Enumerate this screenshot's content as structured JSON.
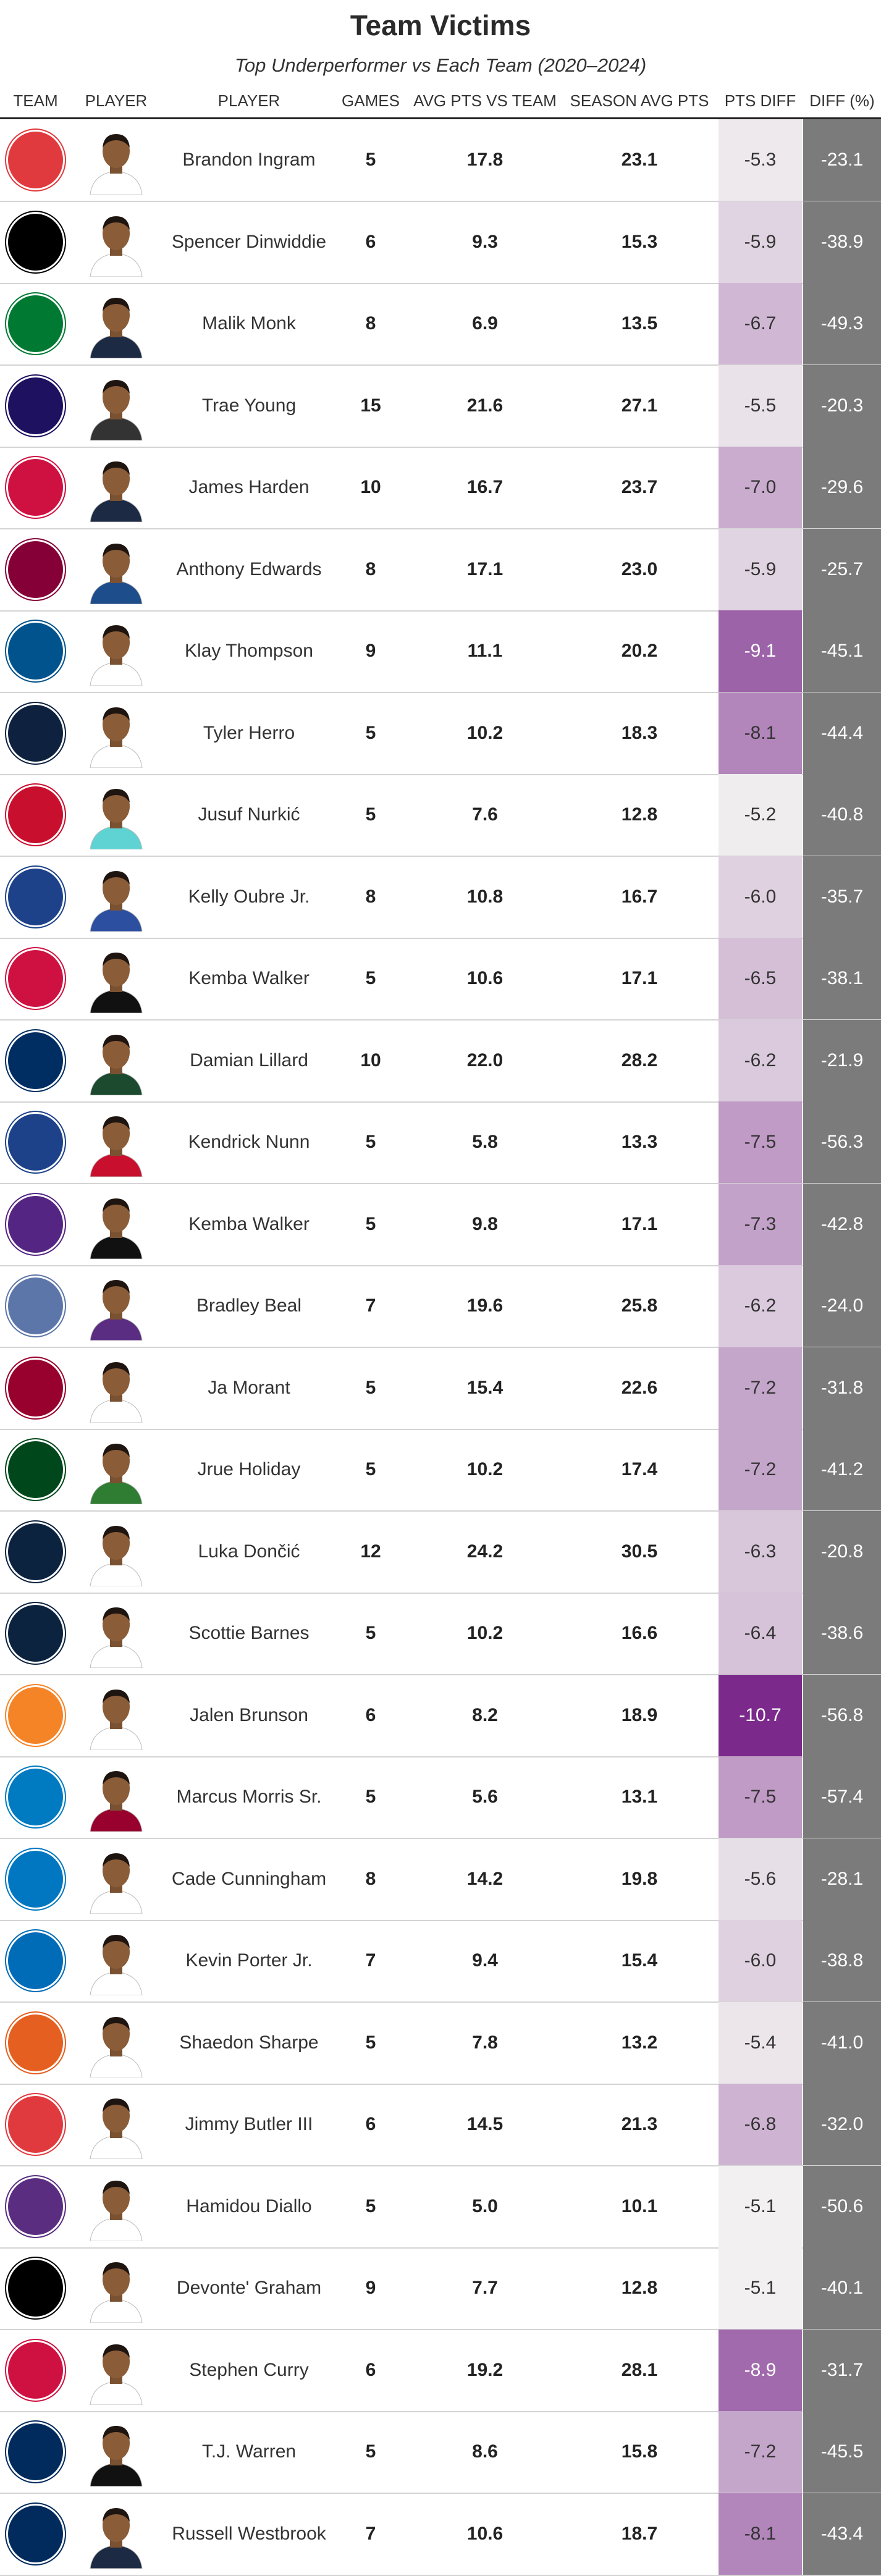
{
  "title": "Team Victims",
  "subtitle": "Top Underperformer vs Each Team (2020–2024)",
  "headers": {
    "team": "TEAM",
    "player_photo": "PLAYER",
    "player": "PLAYER",
    "games": "GAMES",
    "avg_vs_team": "AVG PTS VS TEAM",
    "season_avg": "SEASON AVG PTS",
    "pts_diff": "PTS DIFF",
    "diff_pct": "DIFF (%)"
  },
  "chart_data": {
    "type": "table",
    "columns": [
      "TEAM",
      "PLAYER",
      "GAMES",
      "AVG PTS VS TEAM",
      "SEASON AVG PTS",
      "PTS DIFF",
      "DIFF (%)"
    ],
    "rows": [
      {
        "team_icon": "hawks-logo-icon",
        "team_color": "#e03a3e",
        "player": "Brandon Ingram",
        "jersey": "#ffffff",
        "games": "5",
        "avg": "17.8",
        "season": "23.1",
        "pts_diff": "-5.3",
        "pct": "-23.1",
        "diff_value": -5.3
      },
      {
        "team_icon": "nets-logo-icon",
        "team_color": "#000000",
        "player": "Spencer Dinwiddie",
        "jersey": "#ffffff",
        "games": "6",
        "avg": "9.3",
        "season": "15.3",
        "pts_diff": "-5.9",
        "pct": "-38.9",
        "diff_value": -5.9
      },
      {
        "team_icon": "celtics-logo-icon",
        "team_color": "#007a33",
        "player": "Malik Monk",
        "jersey": "#1d2a44",
        "games": "8",
        "avg": "6.9",
        "season": "13.5",
        "pts_diff": "-6.7",
        "pct": "-49.3",
        "diff_value": -6.7
      },
      {
        "team_icon": "hornets-logo-icon",
        "team_color": "#1d1160",
        "player": "Trae Young",
        "jersey": "#333333",
        "games": "15",
        "avg": "21.6",
        "season": "27.1",
        "pts_diff": "-5.5",
        "pct": "-20.3",
        "diff_value": -5.5
      },
      {
        "team_icon": "bulls-logo-icon",
        "team_color": "#ce1141",
        "player": "James Harden",
        "jersey": "#1d2a44",
        "games": "10",
        "avg": "16.7",
        "season": "23.7",
        "pts_diff": "-7.0",
        "pct": "-29.6",
        "diff_value": -7.0
      },
      {
        "team_icon": "cavaliers-logo-icon",
        "team_color": "#860038",
        "player": "Anthony Edwards",
        "jersey": "#1e4d8c",
        "games": "8",
        "avg": "17.1",
        "season": "23.0",
        "pts_diff": "-5.9",
        "pct": "-25.7",
        "diff_value": -5.9
      },
      {
        "team_icon": "mavericks-logo-icon",
        "team_color": "#00538c",
        "player": "Klay Thompson",
        "jersey": "#ffffff",
        "games": "9",
        "avg": "11.1",
        "season": "20.2",
        "pts_diff": "-9.1",
        "pct": "-45.1",
        "diff_value": -9.1
      },
      {
        "team_icon": "nuggets-logo-icon",
        "team_color": "#0e2240",
        "player": "Tyler Herro",
        "jersey": "#ffffff",
        "games": "5",
        "avg": "10.2",
        "season": "18.3",
        "pts_diff": "-8.1",
        "pct": "-44.4",
        "diff_value": -8.1
      },
      {
        "team_icon": "pistons-logo-icon",
        "team_color": "#c8102e",
        "player": "Jusuf Nurkić",
        "jersey": "#5fd3d3",
        "games": "5",
        "avg": "7.6",
        "season": "12.8",
        "pts_diff": "-5.2",
        "pct": "-40.8",
        "diff_value": -5.2
      },
      {
        "team_icon": "warriors-logo-icon",
        "team_color": "#1d428a",
        "player": "Kelly Oubre Jr.",
        "jersey": "#2d4fa0",
        "games": "8",
        "avg": "10.8",
        "season": "16.7",
        "pts_diff": "-6.0",
        "pct": "-35.7",
        "diff_value": -6.0
      },
      {
        "team_icon": "rockets-logo-icon",
        "team_color": "#ce1141",
        "player": "Kemba Walker",
        "jersey": "#111111",
        "games": "5",
        "avg": "10.6",
        "season": "17.1",
        "pts_diff": "-6.5",
        "pct": "-38.1",
        "diff_value": -6.5
      },
      {
        "team_icon": "pacers-logo-icon",
        "team_color": "#002d62",
        "player": "Damian Lillard",
        "jersey": "#1c4a2e",
        "games": "10",
        "avg": "22.0",
        "season": "28.2",
        "pts_diff": "-6.2",
        "pct": "-21.9",
        "diff_value": -6.2
      },
      {
        "team_icon": "clippers-logo-icon",
        "team_color": "#1d428a",
        "player": "Kendrick Nunn",
        "jersey": "#c8102e",
        "games": "5",
        "avg": "5.8",
        "season": "13.3",
        "pts_diff": "-7.5",
        "pct": "-56.3",
        "diff_value": -7.5
      },
      {
        "team_icon": "lakers-logo-icon",
        "team_color": "#552583",
        "player": "Kemba Walker",
        "jersey": "#111111",
        "games": "5",
        "avg": "9.8",
        "season": "17.1",
        "pts_diff": "-7.3",
        "pct": "-42.8",
        "diff_value": -7.3
      },
      {
        "team_icon": "grizzlies-logo-icon",
        "team_color": "#5d76a9",
        "player": "Bradley Beal",
        "jersey": "#5a2d82",
        "games": "7",
        "avg": "19.6",
        "season": "25.8",
        "pts_diff": "-6.2",
        "pct": "-24.0",
        "diff_value": -6.2
      },
      {
        "team_icon": "heat-logo-icon",
        "team_color": "#98002e",
        "player": "Ja Morant",
        "jersey": "#ffffff",
        "games": "5",
        "avg": "15.4",
        "season": "22.6",
        "pts_diff": "-7.2",
        "pct": "-31.8",
        "diff_value": -7.2
      },
      {
        "team_icon": "bucks-logo-icon",
        "team_color": "#00471b",
        "player": "Jrue Holiday",
        "jersey": "#2e7d32",
        "games": "5",
        "avg": "10.2",
        "season": "17.4",
        "pts_diff": "-7.2",
        "pct": "-41.2",
        "diff_value": -7.2
      },
      {
        "team_icon": "timberwolves-logo-icon",
        "team_color": "#0c2340",
        "player": "Luka Dončić",
        "jersey": "#ffffff",
        "games": "12",
        "avg": "24.2",
        "season": "30.5",
        "pts_diff": "-6.3",
        "pct": "-20.8",
        "diff_value": -6.3
      },
      {
        "team_icon": "pelicans-logo-icon",
        "team_color": "#0c2340",
        "player": "Scottie Barnes",
        "jersey": "#ffffff",
        "games": "5",
        "avg": "10.2",
        "season": "16.6",
        "pts_diff": "-6.4",
        "pct": "-38.6",
        "diff_value": -6.4
      },
      {
        "team_icon": "knicks-logo-icon",
        "team_color": "#f58426",
        "player": "Jalen Brunson",
        "jersey": "#ffffff",
        "games": "6",
        "avg": "8.2",
        "season": "18.9",
        "pts_diff": "-10.7",
        "pct": "-56.8",
        "diff_value": -10.7
      },
      {
        "team_icon": "thunder-logo-icon",
        "team_color": "#007ac1",
        "player": "Marcus Morris Sr.",
        "jersey": "#98002e",
        "games": "5",
        "avg": "5.6",
        "season": "13.1",
        "pts_diff": "-7.5",
        "pct": "-57.4",
        "diff_value": -7.5
      },
      {
        "team_icon": "magic-logo-icon",
        "team_color": "#0077c0",
        "player": "Cade Cunningham",
        "jersey": "#ffffff",
        "games": "8",
        "avg": "14.2",
        "season": "19.8",
        "pts_diff": "-5.6",
        "pct": "-28.1",
        "diff_value": -5.6
      },
      {
        "team_icon": "sixers-logo-icon",
        "team_color": "#006bb6",
        "player": "Kevin Porter Jr.",
        "jersey": "#ffffff",
        "games": "7",
        "avg": "9.4",
        "season": "15.4",
        "pts_diff": "-6.0",
        "pct": "-38.8",
        "diff_value": -6.0
      },
      {
        "team_icon": "suns-logo-icon",
        "team_color": "#e56020",
        "player": "Shaedon Sharpe",
        "jersey": "#ffffff",
        "games": "5",
        "avg": "7.8",
        "season": "13.2",
        "pts_diff": "-5.4",
        "pct": "-41.0",
        "diff_value": -5.4
      },
      {
        "team_icon": "trail-blazers-logo-icon",
        "team_color": "#e03a3e",
        "player": "Jimmy Butler III",
        "jersey": "#ffffff",
        "games": "6",
        "avg": "14.5",
        "season": "21.3",
        "pts_diff": "-6.8",
        "pct": "-32.0",
        "diff_value": -6.8
      },
      {
        "team_icon": "kings-logo-icon",
        "team_color": "#5a2d81",
        "player": "Hamidou Diallo",
        "jersey": "#ffffff",
        "games": "5",
        "avg": "5.0",
        "season": "10.1",
        "pts_diff": "-5.1",
        "pct": "-50.6",
        "diff_value": -5.1
      },
      {
        "team_icon": "spurs-logo-icon",
        "team_color": "#000000",
        "player": "Devonte' Graham",
        "jersey": "#ffffff",
        "games": "9",
        "avg": "7.7",
        "season": "12.8",
        "pts_diff": "-5.1",
        "pct": "-40.1",
        "diff_value": -5.1
      },
      {
        "team_icon": "raptors-logo-icon",
        "team_color": "#ce1141",
        "player": "Stephen Curry",
        "jersey": "#ffffff",
        "games": "6",
        "avg": "19.2",
        "season": "28.1",
        "pts_diff": "-8.9",
        "pct": "-31.7",
        "diff_value": -8.9
      },
      {
        "team_icon": "jazz-logo-icon",
        "team_color": "#002b5c",
        "player": "T.J. Warren",
        "jersey": "#111111",
        "games": "5",
        "avg": "8.6",
        "season": "15.8",
        "pts_diff": "-7.2",
        "pct": "-45.5",
        "diff_value": -7.2
      },
      {
        "team_icon": "wizards-logo-icon",
        "team_color": "#002b5c",
        "player": "Russell Westbrook",
        "jersey": "#1d2a44",
        "games": "7",
        "avg": "10.6",
        "season": "18.7",
        "pts_diff": "-8.1",
        "pct": "-43.4",
        "diff_value": -8.1
      }
    ],
    "diff_color_scale": {
      "low": "#f4f4f2",
      "high": "#7b2a8c",
      "domain": [
        -5.0,
        -10.7
      ]
    },
    "pct_column_color": "#7b7b7b"
  }
}
